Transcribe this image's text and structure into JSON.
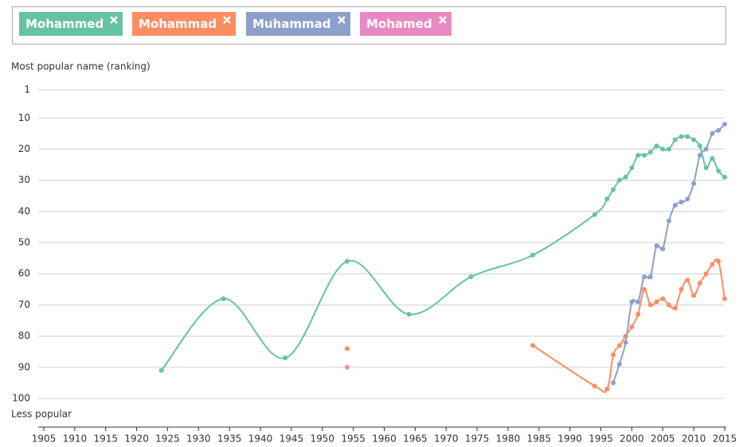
{
  "chart_data": {
    "type": "line",
    "y_label": "Most popular name (ranking)",
    "y_bottom_label": "Less popular",
    "x": [
      1924,
      1934,
      1944,
      1954,
      1964,
      1974,
      1984,
      1994,
      1996,
      1997,
      1998,
      1999,
      2000,
      2001,
      2002,
      2003,
      2004,
      2005,
      2006,
      2007,
      2008,
      2009,
      2010,
      2011,
      2012,
      2013,
      2014,
      2015
    ],
    "series": [
      {
        "name": "Mohammed",
        "color": "#66c2a5",
        "values": [
          91,
          68,
          87,
          56,
          73,
          61,
          54,
          41,
          36,
          33,
          30,
          29,
          26,
          22,
          22,
          21,
          19,
          20,
          20,
          17,
          16,
          16,
          17,
          19,
          26,
          23,
          27,
          29
        ]
      },
      {
        "name": "Mohammad",
        "color": "#fc8d62",
        "values": [
          null,
          null,
          null,
          84,
          null,
          null,
          83,
          96,
          97,
          86,
          83,
          80,
          77,
          73,
          65,
          70,
          69,
          68,
          70,
          71,
          65,
          62,
          67,
          63,
          60,
          57,
          56,
          68
        ]
      },
      {
        "name": "Muhammad",
        "color": "#8da0cb",
        "values": [
          null,
          null,
          null,
          null,
          null,
          null,
          null,
          null,
          null,
          95,
          89,
          82,
          69,
          69,
          61,
          61,
          51,
          52,
          43,
          38,
          37,
          36,
          31,
          22,
          20,
          15,
          14,
          12
        ]
      },
      {
        "name": "Mohamed",
        "color": "#e78ac3",
        "values": [
          null,
          null,
          null,
          90,
          null,
          null,
          null,
          null,
          null,
          null,
          null,
          null,
          null,
          null,
          null,
          null,
          null,
          null,
          null,
          null,
          null,
          null,
          null,
          null,
          null,
          null,
          null,
          null
        ]
      }
    ],
    "xlim": [
      1905,
      2015
    ],
    "xticks": [
      1905,
      1910,
      1915,
      1920,
      1925,
      1930,
      1935,
      1940,
      1945,
      1950,
      1955,
      1960,
      1965,
      1970,
      1975,
      1980,
      1985,
      1990,
      1995,
      2000,
      2005,
      2010,
      2015
    ],
    "ylim": [
      100,
      1
    ],
    "yticks": [
      1,
      10,
      20,
      30,
      40,
      50,
      60,
      70,
      80,
      90,
      100
    ],
    "grid": true
  }
}
